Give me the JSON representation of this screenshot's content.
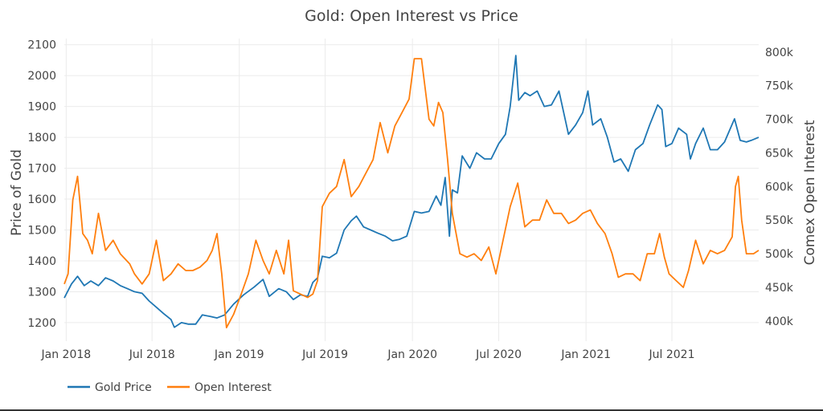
{
  "chart_data": {
    "type": "line",
    "title": "Gold: Open Interest vs Price",
    "ylabel": "Price of Gold",
    "y2label": "Comex Open Interest",
    "x_ticks": [
      "Jan 2018",
      "Jul 2018",
      "Jan 2019",
      "Jul 2019",
      "Jan 2020",
      "Jul 2020",
      "Jan 2021",
      "Jul 2021"
    ],
    "x_tick_dates": [
      "2018-01-01",
      "2018-07-01",
      "2019-01-01",
      "2019-07-01",
      "2020-01-01",
      "2020-07-01",
      "2021-01-01",
      "2021-07-01"
    ],
    "xlim": [
      "2017-12-28",
      "2021-12-31"
    ],
    "ylim": [
      1140,
      2120
    ],
    "y_ticks": [
      1200,
      1300,
      1400,
      1500,
      1600,
      1700,
      1800,
      1900,
      2000,
      2100
    ],
    "y2lim": [
      370000,
      820000
    ],
    "y2_ticks": [
      400000,
      450000,
      500000,
      550000,
      600000,
      650000,
      700000,
      750000,
      800000
    ],
    "y2_tick_labels": [
      "400k",
      "450k",
      "500k",
      "550k",
      "600k",
      "650k",
      "700k",
      "750k",
      "800k"
    ],
    "grid": true,
    "legend_position": "bottom-left",
    "series": [
      {
        "name": "Gold Price",
        "axis": "left",
        "color": "#1f77b4",
        "points": [
          [
            "2017-12-28",
            1280
          ],
          [
            "2018-01-12",
            1325
          ],
          [
            "2018-01-25",
            1350
          ],
          [
            "2018-02-08",
            1320
          ],
          [
            "2018-02-22",
            1335
          ],
          [
            "2018-03-10",
            1320
          ],
          [
            "2018-03-25",
            1345
          ],
          [
            "2018-04-10",
            1335
          ],
          [
            "2018-04-25",
            1320
          ],
          [
            "2018-05-10",
            1310
          ],
          [
            "2018-05-25",
            1300
          ],
          [
            "2018-06-10",
            1295
          ],
          [
            "2018-06-25",
            1270
          ],
          [
            "2018-07-10",
            1250
          ],
          [
            "2018-07-25",
            1230
          ],
          [
            "2018-08-10",
            1210
          ],
          [
            "2018-08-17",
            1185
          ],
          [
            "2018-09-01",
            1200
          ],
          [
            "2018-09-15",
            1195
          ],
          [
            "2018-10-01",
            1195
          ],
          [
            "2018-10-15",
            1225
          ],
          [
            "2018-11-01",
            1220
          ],
          [
            "2018-11-15",
            1215
          ],
          [
            "2018-12-01",
            1225
          ],
          [
            "2018-12-20",
            1260
          ],
          [
            "2019-01-10",
            1290
          ],
          [
            "2019-02-01",
            1315
          ],
          [
            "2019-02-20",
            1340
          ],
          [
            "2019-03-05",
            1285
          ],
          [
            "2019-03-25",
            1310
          ],
          [
            "2019-04-10",
            1300
          ],
          [
            "2019-04-25",
            1275
          ],
          [
            "2019-05-10",
            1290
          ],
          [
            "2019-05-25",
            1285
          ],
          [
            "2019-06-05",
            1330
          ],
          [
            "2019-06-15",
            1345
          ],
          [
            "2019-06-25",
            1415
          ],
          [
            "2019-07-10",
            1410
          ],
          [
            "2019-07-25",
            1425
          ],
          [
            "2019-08-10",
            1500
          ],
          [
            "2019-08-25",
            1530
          ],
          [
            "2019-09-05",
            1545
          ],
          [
            "2019-09-20",
            1510
          ],
          [
            "2019-10-05",
            1500
          ],
          [
            "2019-10-20",
            1490
          ],
          [
            "2019-11-05",
            1480
          ],
          [
            "2019-11-20",
            1465
          ],
          [
            "2019-12-05",
            1470
          ],
          [
            "2019-12-20",
            1480
          ],
          [
            "2020-01-05",
            1560
          ],
          [
            "2020-01-20",
            1555
          ],
          [
            "2020-02-05",
            1560
          ],
          [
            "2020-02-20",
            1610
          ],
          [
            "2020-03-01",
            1580
          ],
          [
            "2020-03-10",
            1670
          ],
          [
            "2020-03-19",
            1480
          ],
          [
            "2020-03-25",
            1630
          ],
          [
            "2020-04-05",
            1620
          ],
          [
            "2020-04-15",
            1740
          ],
          [
            "2020-05-01",
            1700
          ],
          [
            "2020-05-15",
            1750
          ],
          [
            "2020-06-01",
            1730
          ],
          [
            "2020-06-15",
            1730
          ],
          [
            "2020-07-01",
            1780
          ],
          [
            "2020-07-15",
            1810
          ],
          [
            "2020-07-25",
            1900
          ],
          [
            "2020-08-06",
            2065
          ],
          [
            "2020-08-12",
            1920
          ],
          [
            "2020-08-25",
            1945
          ],
          [
            "2020-09-05",
            1935
          ],
          [
            "2020-09-20",
            1950
          ],
          [
            "2020-10-05",
            1900
          ],
          [
            "2020-10-20",
            1905
          ],
          [
            "2020-11-05",
            1950
          ],
          [
            "2020-11-25",
            1810
          ],
          [
            "2020-12-10",
            1840
          ],
          [
            "2020-12-25",
            1880
          ],
          [
            "2021-01-05",
            1950
          ],
          [
            "2021-01-15",
            1840
          ],
          [
            "2021-02-01",
            1860
          ],
          [
            "2021-02-15",
            1800
          ],
          [
            "2021-03-01",
            1720
          ],
          [
            "2021-03-15",
            1730
          ],
          [
            "2021-03-31",
            1690
          ],
          [
            "2021-04-15",
            1760
          ],
          [
            "2021-05-01",
            1780
          ],
          [
            "2021-05-15",
            1840
          ],
          [
            "2021-06-01",
            1905
          ],
          [
            "2021-06-10",
            1890
          ],
          [
            "2021-06-18",
            1770
          ],
          [
            "2021-07-01",
            1780
          ],
          [
            "2021-07-15",
            1830
          ],
          [
            "2021-08-01",
            1810
          ],
          [
            "2021-08-09",
            1730
          ],
          [
            "2021-08-20",
            1780
          ],
          [
            "2021-09-05",
            1830
          ],
          [
            "2021-09-20",
            1760
          ],
          [
            "2021-10-05",
            1760
          ],
          [
            "2021-10-20",
            1785
          ],
          [
            "2021-11-10",
            1860
          ],
          [
            "2021-11-22",
            1790
          ],
          [
            "2021-12-05",
            1785
          ],
          [
            "2021-12-15",
            1790
          ],
          [
            "2021-12-31",
            1800
          ]
        ]
      },
      {
        "name": "Open Interest",
        "axis": "right",
        "color": "#ff7f0e",
        "points": [
          [
            "2017-12-28",
            455000
          ],
          [
            "2018-01-05",
            470000
          ],
          [
            "2018-01-15",
            580000
          ],
          [
            "2018-01-25",
            615000
          ],
          [
            "2018-02-05",
            530000
          ],
          [
            "2018-02-15",
            520000
          ],
          [
            "2018-02-25",
            500000
          ],
          [
            "2018-03-10",
            560000
          ],
          [
            "2018-03-25",
            505000
          ],
          [
            "2018-04-10",
            520000
          ],
          [
            "2018-04-25",
            500000
          ],
          [
            "2018-05-15",
            485000
          ],
          [
            "2018-05-25",
            470000
          ],
          [
            "2018-06-10",
            455000
          ],
          [
            "2018-06-25",
            470000
          ],
          [
            "2018-07-10",
            520000
          ],
          [
            "2018-07-25",
            460000
          ],
          [
            "2018-08-10",
            470000
          ],
          [
            "2018-08-25",
            485000
          ],
          [
            "2018-09-10",
            475000
          ],
          [
            "2018-09-25",
            475000
          ],
          [
            "2018-10-10",
            480000
          ],
          [
            "2018-10-25",
            490000
          ],
          [
            "2018-11-05",
            505000
          ],
          [
            "2018-11-15",
            530000
          ],
          [
            "2018-11-25",
            470000
          ],
          [
            "2018-12-05",
            390000
          ],
          [
            "2018-12-20",
            410000
          ],
          [
            "2019-01-05",
            440000
          ],
          [
            "2019-01-20",
            470000
          ],
          [
            "2019-02-05",
            520000
          ],
          [
            "2019-02-20",
            490000
          ],
          [
            "2019-03-05",
            470000
          ],
          [
            "2019-03-20",
            505000
          ],
          [
            "2019-04-05",
            470000
          ],
          [
            "2019-04-15",
            520000
          ],
          [
            "2019-04-25",
            445000
          ],
          [
            "2019-05-10",
            440000
          ],
          [
            "2019-05-25",
            435000
          ],
          [
            "2019-06-05",
            440000
          ],
          [
            "2019-06-15",
            460000
          ],
          [
            "2019-06-25",
            570000
          ],
          [
            "2019-07-10",
            590000
          ],
          [
            "2019-07-25",
            600000
          ],
          [
            "2019-08-10",
            640000
          ],
          [
            "2019-08-25",
            585000
          ],
          [
            "2019-09-10",
            600000
          ],
          [
            "2019-09-25",
            620000
          ],
          [
            "2019-10-10",
            640000
          ],
          [
            "2019-10-25",
            695000
          ],
          [
            "2019-11-10",
            650000
          ],
          [
            "2019-11-25",
            690000
          ],
          [
            "2019-12-10",
            710000
          ],
          [
            "2019-12-25",
            730000
          ],
          [
            "2020-01-05",
            790000
          ],
          [
            "2020-01-20",
            790000
          ],
          [
            "2020-02-05",
            700000
          ],
          [
            "2020-02-15",
            690000
          ],
          [
            "2020-02-25",
            725000
          ],
          [
            "2020-03-05",
            710000
          ],
          [
            "2020-03-15",
            640000
          ],
          [
            "2020-03-25",
            560000
          ],
          [
            "2020-04-10",
            500000
          ],
          [
            "2020-04-25",
            495000
          ],
          [
            "2020-05-10",
            500000
          ],
          [
            "2020-05-25",
            490000
          ],
          [
            "2020-06-10",
            510000
          ],
          [
            "2020-06-25",
            470000
          ],
          [
            "2020-07-10",
            520000
          ],
          [
            "2020-07-25",
            570000
          ],
          [
            "2020-08-10",
            605000
          ],
          [
            "2020-08-25",
            540000
          ],
          [
            "2020-09-10",
            550000
          ],
          [
            "2020-09-25",
            550000
          ],
          [
            "2020-10-10",
            580000
          ],
          [
            "2020-10-25",
            560000
          ],
          [
            "2020-11-10",
            560000
          ],
          [
            "2020-11-25",
            545000
          ],
          [
            "2020-12-10",
            550000
          ],
          [
            "2020-12-25",
            560000
          ],
          [
            "2021-01-10",
            565000
          ],
          [
            "2021-01-25",
            545000
          ],
          [
            "2021-02-10",
            530000
          ],
          [
            "2021-02-25",
            500000
          ],
          [
            "2021-03-10",
            465000
          ],
          [
            "2021-03-25",
            470000
          ],
          [
            "2021-04-10",
            470000
          ],
          [
            "2021-04-25",
            460000
          ],
          [
            "2021-05-10",
            500000
          ],
          [
            "2021-05-25",
            500000
          ],
          [
            "2021-06-05",
            530000
          ],
          [
            "2021-06-15",
            495000
          ],
          [
            "2021-06-25",
            470000
          ],
          [
            "2021-07-10",
            460000
          ],
          [
            "2021-07-25",
            450000
          ],
          [
            "2021-08-05",
            475000
          ],
          [
            "2021-08-20",
            520000
          ],
          [
            "2021-09-05",
            485000
          ],
          [
            "2021-09-20",
            505000
          ],
          [
            "2021-10-05",
            500000
          ],
          [
            "2021-10-20",
            505000
          ],
          [
            "2021-11-05",
            525000
          ],
          [
            "2021-11-12",
            600000
          ],
          [
            "2021-11-18",
            615000
          ],
          [
            "2021-11-25",
            550000
          ],
          [
            "2021-12-05",
            500000
          ],
          [
            "2021-12-20",
            500000
          ],
          [
            "2021-12-31",
            505000
          ]
        ]
      }
    ]
  }
}
